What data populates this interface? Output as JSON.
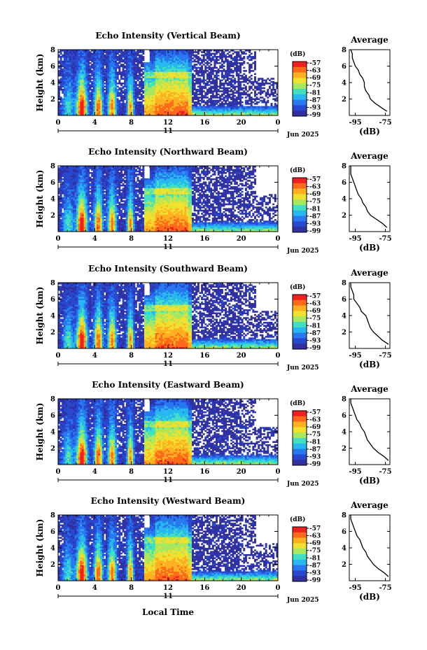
{
  "figure": {
    "xlabel": "Local Time",
    "date_label": "Jun 2025",
    "day_label": "11"
  },
  "colorbar": {
    "unit": "(dB)",
    "ticks": [
      "-57",
      "-63",
      "-69",
      "-75",
      "-81",
      "-87",
      "-93",
      "-99"
    ],
    "colors": [
      "#f02020",
      "#ff6a1a",
      "#ffb020",
      "#f0e030",
      "#a8e860",
      "#40e0c0",
      "#28b8f0",
      "#2878f0",
      "#2848d0",
      "#3030a0"
    ]
  },
  "chart_data": [
    {
      "type": "heatmap",
      "title": "Echo Intensity (Vertical Beam)",
      "ylabel": "Height (km)",
      "x_ticks": [
        "0",
        "4",
        "8",
        "12",
        "16",
        "20",
        "0"
      ],
      "y_ticks": [
        "8",
        "6",
        "4",
        "2"
      ],
      "xlim": [
        0,
        24
      ],
      "ylim": [
        0,
        8
      ],
      "value_unit": "dB",
      "value_range": [
        -99,
        -57
      ],
      "profile": {
        "title": "Average",
        "xlabel": "(dB)",
        "x_ticks": [
          "-95",
          "-75"
        ],
        "y_ticks": [
          "8",
          "6",
          "4",
          "2"
        ],
        "xlim": [
          -99,
          -72
        ],
        "height_km": [
          0.5,
          1.0,
          1.5,
          2.0,
          2.5,
          3.0,
          3.5,
          4.0,
          4.5,
          5.0,
          5.5,
          6.0,
          6.5,
          7.0,
          7.5,
          8.0
        ],
        "value_db": [
          -74,
          -78,
          -82,
          -85,
          -86,
          -88,
          -89,
          -89,
          -90,
          -92,
          -93,
          -95,
          -96,
          -97,
          -97,
          -98
        ]
      }
    },
    {
      "type": "heatmap",
      "title": "Echo Intensity (Northward Beam)",
      "ylabel": "Height (km)",
      "x_ticks": [
        "0",
        "4",
        "8",
        "12",
        "16",
        "20",
        "0"
      ],
      "y_ticks": [
        "8",
        "6",
        "4",
        "2"
      ],
      "xlim": [
        0,
        24
      ],
      "ylim": [
        0,
        8
      ],
      "value_unit": "dB",
      "value_range": [
        -99,
        -57
      ],
      "profile": {
        "title": "Average",
        "xlabel": "(dB)",
        "x_ticks": [
          "-95",
          "-75"
        ],
        "y_ticks": [
          "8",
          "6",
          "4",
          "2"
        ],
        "xlim": [
          -99,
          -72
        ],
        "height_km": [
          0.5,
          1.0,
          1.5,
          2.0,
          2.5,
          3.0,
          3.5,
          4.0,
          4.5,
          5.0,
          5.5,
          6.0,
          6.5,
          7.0,
          7.5,
          8.0
        ],
        "value_db": [
          -74,
          -77,
          -81,
          -85,
          -87,
          -88,
          -90,
          -91,
          -93,
          -94,
          -95,
          -96,
          -97,
          -98,
          -98,
          -98
        ]
      }
    },
    {
      "type": "heatmap",
      "title": "Echo Intensity (Southward Beam)",
      "ylabel": "Height (km)",
      "x_ticks": [
        "0",
        "4",
        "8",
        "12",
        "16",
        "20",
        "0"
      ],
      "y_ticks": [
        "8",
        "6",
        "4",
        "2"
      ],
      "xlim": [
        0,
        24
      ],
      "ylim": [
        0,
        8
      ],
      "value_unit": "dB",
      "value_range": [
        -99,
        -57
      ],
      "profile": {
        "title": "Average",
        "xlabel": "(dB)",
        "x_ticks": [
          "-95",
          "-75"
        ],
        "y_ticks": [
          "8",
          "6",
          "4",
          "2"
        ],
        "xlim": [
          -99,
          -72
        ],
        "height_km": [
          0.5,
          1.0,
          1.5,
          2.0,
          2.5,
          3.0,
          3.5,
          4.0,
          4.5,
          5.0,
          5.5,
          6.0,
          6.5,
          7.0,
          7.5,
          8.0
        ],
        "value_db": [
          -73,
          -77,
          -80,
          -83,
          -85,
          -86,
          -87,
          -88,
          -91,
          -92,
          -94,
          -96,
          -96,
          -97,
          -98,
          -98
        ]
      }
    },
    {
      "type": "heatmap",
      "title": "Echo Intensity (Eastward Beam)",
      "ylabel": "Height (km)",
      "x_ticks": [
        "0",
        "4",
        "8",
        "12",
        "16",
        "20",
        "0"
      ],
      "y_ticks": [
        "8",
        "6",
        "4",
        "2"
      ],
      "xlim": [
        0,
        24
      ],
      "ylim": [
        0,
        8
      ],
      "value_unit": "dB",
      "value_range": [
        -99,
        -57
      ],
      "profile": {
        "title": "Average",
        "xlabel": "(dB)",
        "x_ticks": [
          "-95",
          "-75"
        ],
        "y_ticks": [
          "8",
          "6",
          "4",
          "2"
        ],
        "xlim": [
          -99,
          -72
        ],
        "height_km": [
          0.5,
          1.0,
          1.5,
          2.0,
          2.5,
          3.0,
          3.5,
          4.0,
          4.5,
          5.0,
          5.5,
          6.0,
          6.5,
          7.0,
          7.5,
          8.0
        ],
        "value_db": [
          -73,
          -76,
          -80,
          -83,
          -85,
          -87,
          -88,
          -89,
          -91,
          -92,
          -94,
          -95,
          -96,
          -97,
          -98,
          -98
        ]
      }
    },
    {
      "type": "heatmap",
      "title": "Echo Intensity (Westward Beam)",
      "ylabel": "Height (km)",
      "x_ticks": [
        "0",
        "4",
        "8",
        "12",
        "16",
        "20",
        "0"
      ],
      "y_ticks": [
        "8",
        "6",
        "4",
        "2"
      ],
      "xlim": [
        0,
        24
      ],
      "ylim": [
        0,
        8
      ],
      "value_unit": "dB",
      "value_range": [
        -99,
        -57
      ],
      "profile": {
        "title": "Average",
        "xlabel": "(dB)",
        "x_ticks": [
          "-95",
          "-75"
        ],
        "y_ticks": [
          "8",
          "6",
          "4",
          "2"
        ],
        "xlim": [
          -99,
          -72
        ],
        "height_km": [
          0.5,
          1.0,
          1.5,
          2.0,
          2.5,
          3.0,
          3.5,
          4.0,
          4.5,
          5.0,
          5.5,
          6.0,
          6.5,
          7.0,
          7.5,
          8.0
        ],
        "value_db": [
          -73,
          -76,
          -80,
          -83,
          -85,
          -87,
          -88,
          -90,
          -91,
          -92,
          -94,
          -95,
          -96,
          -97,
          -98,
          -98
        ]
      }
    }
  ]
}
